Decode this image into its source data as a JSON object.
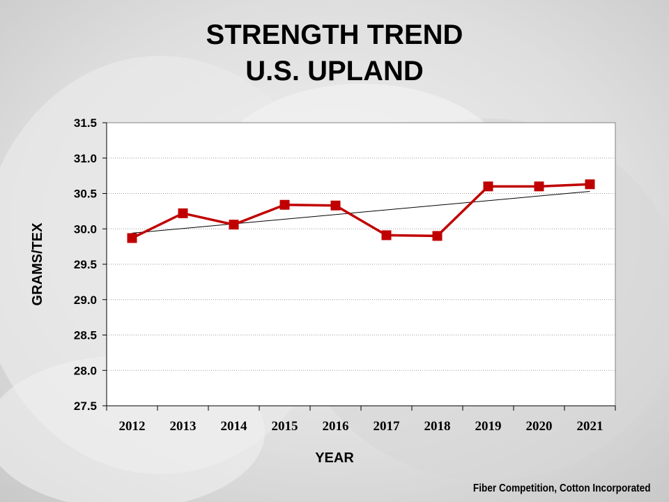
{
  "title_line1": "STRENGTH TREND",
  "title_line2": "U.S. UPLAND",
  "source": "Fiber Competition, Cotton Incorporated",
  "colors": {
    "series": "#c00000",
    "trend": "#000000",
    "grid": "#9a9a9a",
    "plot_bg": "#ffffff"
  },
  "chart_data": {
    "type": "line",
    "title": "STRENGTH TREND U.S. UPLAND",
    "xlabel": "YEAR",
    "ylabel": "GRAMS/TEX",
    "categories": [
      "2012",
      "2013",
      "2014",
      "2015",
      "2016",
      "2017",
      "2018",
      "2019",
      "2020",
      "2021"
    ],
    "series": [
      {
        "values": [
          29.87,
          30.22,
          30.06,
          30.34,
          30.33,
          29.91,
          29.9,
          30.6,
          30.6,
          30.63
        ]
      }
    ],
    "trendline": {
      "start": 29.94,
      "end": 30.53
    },
    "ylim": [
      27.5,
      31.5
    ],
    "yticks": [
      "27.5",
      "28.0",
      "28.5",
      "29.0",
      "29.5",
      "30.0",
      "30.5",
      "31.0",
      "31.5"
    ],
    "grid": "horizontal dotted",
    "legend": "none"
  }
}
